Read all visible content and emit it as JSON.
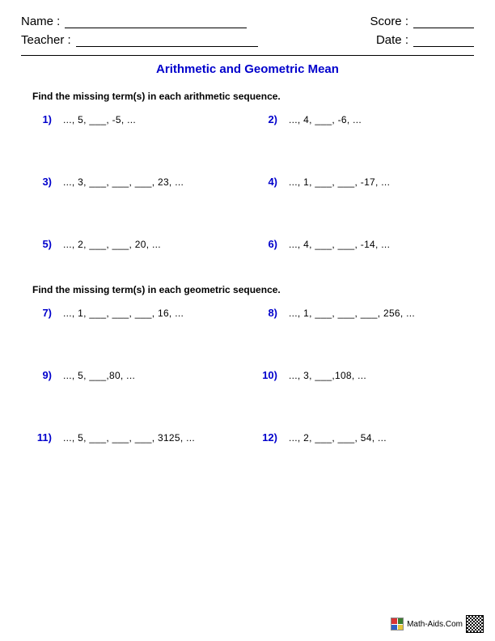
{
  "header": {
    "name_label": "Name :",
    "teacher_label": "Teacher :",
    "score_label": "Score :",
    "date_label": "Date :"
  },
  "title": {
    "text": "Arithmetic and Geometric Mean",
    "color": "#0000cc"
  },
  "sections": [
    {
      "instruction": "Find the missing term(s) in each arithmetic sequence.",
      "problems": [
        {
          "n": "1)",
          "text": "..., 5, ___, -5, ..."
        },
        {
          "n": "2)",
          "text": "..., 4, ___, -6, ..."
        },
        {
          "n": "3)",
          "text": "..., 3, ___, ___, ___, 23, ..."
        },
        {
          "n": "4)",
          "text": "..., 1, ___, ___, -17, ..."
        },
        {
          "n": "5)",
          "text": "..., 2, ___, ___, 20, ..."
        },
        {
          "n": "6)",
          "text": "..., 4, ___, ___, -14, ..."
        }
      ]
    },
    {
      "instruction": "Find the missing term(s) in each geometric sequence.",
      "problems": [
        {
          "n": "7)",
          "text": "..., 1, ___, ___, ___, 16, ..."
        },
        {
          "n": "8)",
          "text": "..., 1, ___, ___, ___, 256, ..."
        },
        {
          "n": "9)",
          "text": "..., 5, ___,80, ..."
        },
        {
          "n": "10)",
          "text": "..., 3, ___,108, ..."
        },
        {
          "n": "11)",
          "text": "..., 5, ___, ___, ___, 3125, ..."
        },
        {
          "n": "12)",
          "text": "..., 2, ___, ___, 54, ..."
        }
      ]
    }
  ],
  "problem_number_color": "#0000cc",
  "footer": {
    "site": "Math-Aids.Com",
    "logo_colors": [
      "#d93333",
      "#3a7d2f",
      "#2f5fc4",
      "#e6c63a"
    ]
  }
}
